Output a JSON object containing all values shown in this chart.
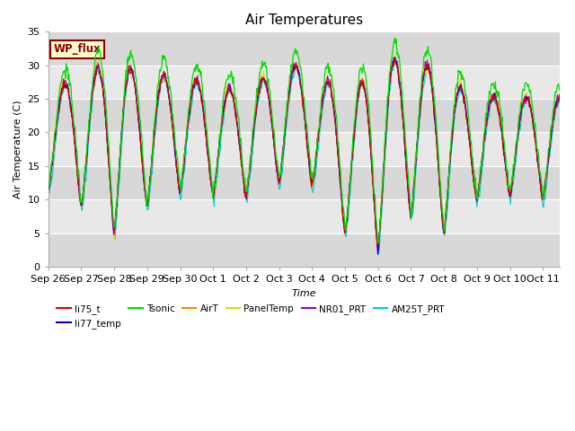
{
  "title": "Air Temperatures",
  "xlabel": "Time",
  "ylabel": "Air Temperature (C)",
  "ylim": [
    0,
    35
  ],
  "tick_labels": [
    "Sep 26",
    "Sep 27",
    "Sep 28",
    "Sep 29",
    "Sep 30",
    "Oct 1",
    "Oct 2",
    "Oct 3",
    "Oct 4",
    "Oct 5",
    "Oct 6",
    "Oct 7",
    "Oct 8",
    "Oct 9",
    "Oct 10",
    "Oct 11"
  ],
  "series_colors": {
    "li75_t": "#dd0000",
    "li77_temp": "#0000cc",
    "Tsonic": "#00dd00",
    "AirT": "#ff8800",
    "PanelTemp": "#dddd00",
    "NR01_PRT": "#9900cc",
    "AM25T_PRT": "#00cccc"
  },
  "legend_label": "WP_flux",
  "background_color": "#ffffff",
  "plot_bg_light": "#f0f0f0",
  "plot_bg_dark": "#d8d8d8",
  "grid_color": "#ffffff",
  "title_fontsize": 11,
  "label_fontsize": 8,
  "tick_fontsize": 8
}
